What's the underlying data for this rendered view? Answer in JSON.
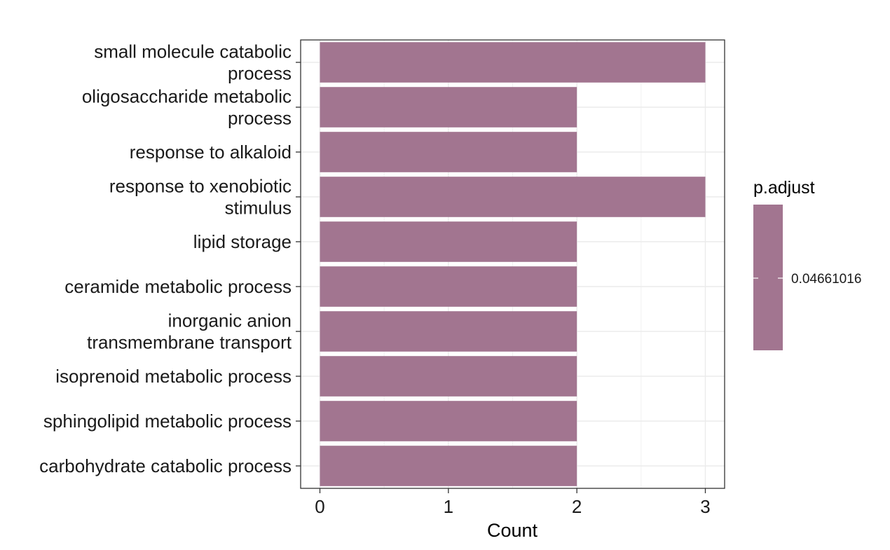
{
  "chart_data": {
    "type": "bar",
    "orientation": "horizontal",
    "categories": [
      "small molecule catabolic process",
      "oligosaccharide metabolic process",
      "response to alkaloid",
      "response to xenobiotic stimulus",
      "lipid storage",
      "ceramide metabolic process",
      "inorganic anion transmembrane transport",
      "isoprenoid metabolic process",
      "sphingolipid metabolic process",
      "carbohydrate catabolic process"
    ],
    "category_lines": [
      [
        "small molecule catabolic",
        "process"
      ],
      [
        "oligosaccharide metabolic",
        "process"
      ],
      [
        "response to alkaloid"
      ],
      [
        "response to xenobiotic",
        "stimulus"
      ],
      [
        "lipid storage"
      ],
      [
        "ceramide metabolic process"
      ],
      [
        "inorganic anion",
        "transmembrane transport"
      ],
      [
        "isoprenoid metabolic process"
      ],
      [
        "sphingolipid metabolic process"
      ],
      [
        "carbohydrate catabolic process"
      ]
    ],
    "values": [
      3,
      2,
      2,
      3,
      2,
      2,
      2,
      2,
      2,
      2
    ],
    "xlabel": "Count",
    "ylabel": "",
    "xlim": [
      -0.15,
      3.15
    ],
    "xticks": [
      0,
      1,
      2,
      3
    ],
    "grid": true,
    "bar_color": "#a27590",
    "legend": {
      "title": "p.adjust",
      "labels": [
        "0.04661016"
      ],
      "placement": "right",
      "color": "#a27590"
    }
  }
}
